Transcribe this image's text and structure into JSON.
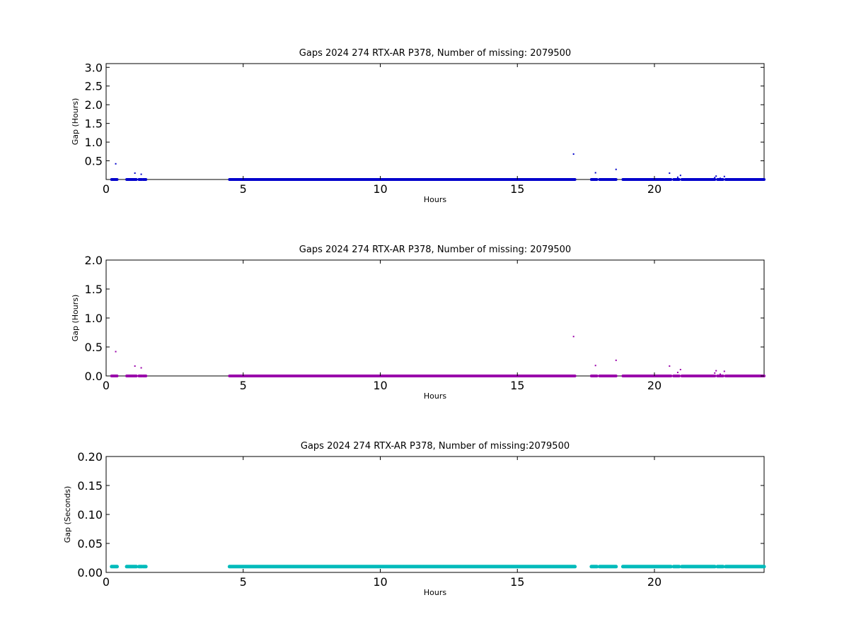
{
  "chart_data": [
    {
      "type": "scatter",
      "title": "Gaps 2024 274 RTX-AR  P378, Number of missing: 2079500",
      "xlabel": "Hours",
      "ylabel": "Gap (Hours)",
      "xlim": [
        0,
        24
      ],
      "ylim": [
        0,
        3.1
      ],
      "xticks": [
        0,
        5,
        10,
        15,
        20
      ],
      "xtick_labels": [
        "0",
        "5",
        "10",
        "15",
        "20"
      ],
      "yticks": [
        0.5,
        1.0,
        1.5,
        2.0,
        2.5,
        3.0
      ],
      "ytick_labels": [
        "0.5",
        "1.0",
        "1.5",
        "2.0",
        "2.5",
        "3.0"
      ],
      "grid": false,
      "color": "#0000cc",
      "marker": "dot",
      "dense_runs": [
        {
          "x_start": 0.2,
          "x_end": 0.4,
          "y": 0.0
        },
        {
          "x_start": 0.75,
          "x_end": 1.1,
          "y": 0.0
        },
        {
          "x_start": 1.2,
          "x_end": 1.3,
          "y": 0.0
        },
        {
          "x_start": 1.35,
          "x_end": 1.45,
          "y": 0.0
        },
        {
          "x_start": 4.5,
          "x_end": 17.1,
          "y": 0.0
        },
        {
          "x_start": 17.7,
          "x_end": 17.9,
          "y": 0.0
        },
        {
          "x_start": 18.0,
          "x_end": 18.6,
          "y": 0.0
        },
        {
          "x_start": 18.85,
          "x_end": 20.6,
          "y": 0.0
        },
        {
          "x_start": 20.7,
          "x_end": 20.9,
          "y": 0.0
        },
        {
          "x_start": 21.0,
          "x_end": 22.2,
          "y": 0.0
        },
        {
          "x_start": 22.3,
          "x_end": 22.5,
          "y": 0.0
        },
        {
          "x_start": 22.6,
          "x_end": 24.0,
          "y": 0.0
        }
      ],
      "points": [
        {
          "x": 0.35,
          "y": 0.42
        },
        {
          "x": 1.05,
          "y": 0.17
        },
        {
          "x": 1.28,
          "y": 0.14
        },
        {
          "x": 17.05,
          "y": 0.68
        },
        {
          "x": 17.85,
          "y": 0.18
        },
        {
          "x": 18.6,
          "y": 0.27
        },
        {
          "x": 20.55,
          "y": 0.17
        },
        {
          "x": 20.85,
          "y": 0.06
        },
        {
          "x": 20.95,
          "y": 0.11
        },
        {
          "x": 22.2,
          "y": 0.05
        },
        {
          "x": 22.25,
          "y": 0.09
        },
        {
          "x": 22.4,
          "y": 0.03
        },
        {
          "x": 22.55,
          "y": 0.08
        }
      ]
    },
    {
      "type": "scatter",
      "title": "Gaps 2024 274 RTX-AR  P378, Number of missing: 2079500",
      "xlabel": "Hours",
      "ylabel": "Gap (Hours)",
      "xlim": [
        0,
        24
      ],
      "ylim": [
        0,
        2.0
      ],
      "xticks": [
        0,
        5,
        10,
        15,
        20
      ],
      "xtick_labels": [
        "0",
        "5",
        "10",
        "15",
        "20"
      ],
      "yticks": [
        0.0,
        0.5,
        1.0,
        1.5,
        2.0
      ],
      "ytick_labels": [
        "0.0",
        "0.5",
        "1.0",
        "1.5",
        "2.0"
      ],
      "grid": false,
      "color": "#9900aa",
      "marker": "dot",
      "dense_runs": [
        {
          "x_start": 0.2,
          "x_end": 0.4,
          "y": 0.0
        },
        {
          "x_start": 0.75,
          "x_end": 1.1,
          "y": 0.0
        },
        {
          "x_start": 1.2,
          "x_end": 1.3,
          "y": 0.0
        },
        {
          "x_start": 1.35,
          "x_end": 1.45,
          "y": 0.0
        },
        {
          "x_start": 4.5,
          "x_end": 17.1,
          "y": 0.0
        },
        {
          "x_start": 17.7,
          "x_end": 17.9,
          "y": 0.0
        },
        {
          "x_start": 18.0,
          "x_end": 18.6,
          "y": 0.0
        },
        {
          "x_start": 18.85,
          "x_end": 20.6,
          "y": 0.0
        },
        {
          "x_start": 20.7,
          "x_end": 20.9,
          "y": 0.0
        },
        {
          "x_start": 21.0,
          "x_end": 22.2,
          "y": 0.0
        },
        {
          "x_start": 22.3,
          "x_end": 22.5,
          "y": 0.0
        },
        {
          "x_start": 22.6,
          "x_end": 24.0,
          "y": 0.0
        }
      ],
      "points": [
        {
          "x": 0.35,
          "y": 0.42
        },
        {
          "x": 1.05,
          "y": 0.17
        },
        {
          "x": 1.28,
          "y": 0.14
        },
        {
          "x": 17.05,
          "y": 0.68
        },
        {
          "x": 17.85,
          "y": 0.18
        },
        {
          "x": 18.6,
          "y": 0.27
        },
        {
          "x": 20.55,
          "y": 0.17
        },
        {
          "x": 20.85,
          "y": 0.06
        },
        {
          "x": 20.95,
          "y": 0.11
        },
        {
          "x": 22.2,
          "y": 0.05
        },
        {
          "x": 22.25,
          "y": 0.09
        },
        {
          "x": 22.4,
          "y": 0.03
        },
        {
          "x": 22.55,
          "y": 0.08
        }
      ]
    },
    {
      "type": "scatter",
      "title": "Gaps 2024 274 RTX-AR  P378, Number of missing:2079500",
      "xlabel": "Hours",
      "ylabel": "Gap (Seconds)",
      "xlim": [
        0,
        24
      ],
      "ylim": [
        0,
        0.2
      ],
      "xticks": [
        0,
        5,
        10,
        15,
        20
      ],
      "xtick_labels": [
        "0",
        "5",
        "10",
        "15",
        "20"
      ],
      "yticks": [
        0.0,
        0.05,
        0.1,
        0.15,
        0.2
      ],
      "ytick_labels": [
        "0.00",
        "0.05",
        "0.10",
        "0.15",
        "0.20"
      ],
      "grid": false,
      "color": "#00bbbb",
      "marker": "circle",
      "dense_runs": [
        {
          "x_start": 0.2,
          "x_end": 0.4,
          "y": 0.01
        },
        {
          "x_start": 0.75,
          "x_end": 1.1,
          "y": 0.01
        },
        {
          "x_start": 1.2,
          "x_end": 1.3,
          "y": 0.01
        },
        {
          "x_start": 1.35,
          "x_end": 1.45,
          "y": 0.01
        },
        {
          "x_start": 4.5,
          "x_end": 17.1,
          "y": 0.01
        },
        {
          "x_start": 17.7,
          "x_end": 17.9,
          "y": 0.01
        },
        {
          "x_start": 18.0,
          "x_end": 18.6,
          "y": 0.01
        },
        {
          "x_start": 18.85,
          "x_end": 20.6,
          "y": 0.01
        },
        {
          "x_start": 20.7,
          "x_end": 20.9,
          "y": 0.01
        },
        {
          "x_start": 21.0,
          "x_end": 22.2,
          "y": 0.01
        },
        {
          "x_start": 22.3,
          "x_end": 22.5,
          "y": 0.01
        },
        {
          "x_start": 22.6,
          "x_end": 24.0,
          "y": 0.01
        }
      ],
      "points": []
    }
  ]
}
